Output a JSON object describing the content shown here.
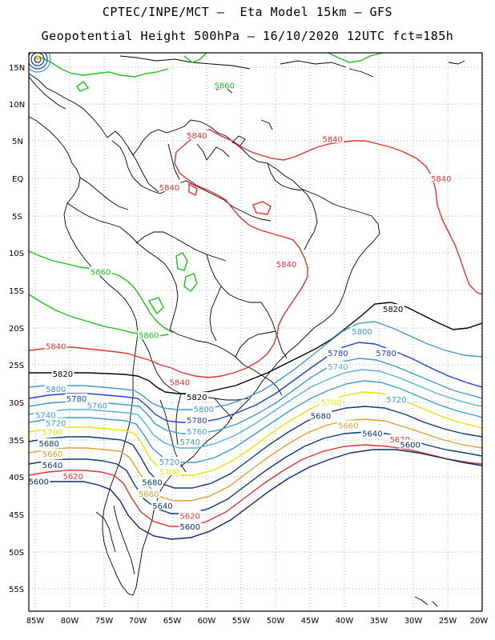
{
  "header": {
    "line1": "CPTEC/INPE/MCT –  Eta Model 15km – GFS",
    "line2": "Geopotential Height 500hPa – 16/10/2020 12UTC fct=185h"
  },
  "axes": {
    "lat_labels": [
      "15N",
      "10N",
      "5N",
      "EQ",
      "5S",
      "10S",
      "15S",
      "20S",
      "25S",
      "30S",
      "35S",
      "40S",
      "45S",
      "50S",
      "55S"
    ],
    "lon_labels": [
      "85W",
      "80W",
      "75W",
      "70W",
      "65W",
      "60W",
      "55W",
      "50W",
      "45W",
      "40W",
      "35W",
      "30W",
      "25W",
      "20W"
    ]
  },
  "contour_labels": [
    {
      "text": "5860",
      "color": "#18c418",
      "lon": -57.5,
      "lat": 12.5
    },
    {
      "text": "5860",
      "color": "#18c418",
      "lon": -75.5,
      "lat": -12.5
    },
    {
      "text": "5860",
      "color": "#18c418",
      "lon": -68.5,
      "lat": -21.0
    },
    {
      "text": "5840",
      "color": "#e83030",
      "lon": -61.5,
      "lat": 5.8
    },
    {
      "text": "5840",
      "color": "#e83030",
      "lon": -41.8,
      "lat": 5.3
    },
    {
      "text": "5840",
      "color": "#e83030",
      "lon": -65.5,
      "lat": -1.2
    },
    {
      "text": "5840",
      "color": "#e83030",
      "lon": -26.0,
      "lat": 0.0
    },
    {
      "text": "5840",
      "color": "#e83030",
      "lon": -48.5,
      "lat": -11.5
    },
    {
      "text": "5840",
      "color": "#e83030",
      "lon": -82.0,
      "lat": -22.5
    },
    {
      "text": "5840",
      "color": "#e83030",
      "lon": -64.0,
      "lat": -27.3
    },
    {
      "text": "5820",
      "color": "#000000",
      "lon": -33.0,
      "lat": -17.5
    },
    {
      "text": "5820",
      "color": "#000000",
      "lon": -81.0,
      "lat": -26.2
    },
    {
      "text": "5820",
      "color": "#000000",
      "lon": -61.5,
      "lat": -29.3
    },
    {
      "text": "5800",
      "color": "#3a9ecc",
      "lon": -37.5,
      "lat": -20.5
    },
    {
      "text": "5800",
      "color": "#3a9ecc",
      "lon": -82.0,
      "lat": -28.2
    },
    {
      "text": "5800",
      "color": "#3a9ecc",
      "lon": -60.5,
      "lat": -30.9
    },
    {
      "text": "5780",
      "color": "#1f3ee0",
      "lon": -41.0,
      "lat": -23.4
    },
    {
      "text": "5780",
      "color": "#1f3ee0",
      "lon": -34.0,
      "lat": -23.4
    },
    {
      "text": "5780",
      "color": "#1f3ee0",
      "lon": -79.0,
      "lat": -29.5
    },
    {
      "text": "5780",
      "color": "#1f3ee0",
      "lon": -61.5,
      "lat": -32.4
    },
    {
      "text": "5760",
      "color": "#3a9ecc",
      "lon": -76.0,
      "lat": -30.4
    },
    {
      "text": "5760",
      "color": "#3a9ecc",
      "lon": -61.5,
      "lat": -33.9
    },
    {
      "text": "5740",
      "color": "#5ab0d8",
      "lon": -41.0,
      "lat": -25.2
    },
    {
      "text": "5740",
      "color": "#3a9ecc",
      "lon": -83.5,
      "lat": -31.7
    },
    {
      "text": "5740",
      "color": "#3a9ecc",
      "lon": -62.5,
      "lat": -35.3
    },
    {
      "text": "5720",
      "color": "#3a9ecc",
      "lon": -32.5,
      "lat": -29.6
    },
    {
      "text": "5720",
      "color": "#3a9ecc",
      "lon": -82.0,
      "lat": -32.8
    },
    {
      "text": "5720",
      "color": "#3a9ecc",
      "lon": -65.5,
      "lat": -38.0
    },
    {
      "text": "5700",
      "color": "#e6e600",
      "lon": -42.0,
      "lat": -30.0
    },
    {
      "text": "5700",
      "color": "#e6e600",
      "lon": -82.5,
      "lat": -34.0
    },
    {
      "text": "5700",
      "color": "#e6e600",
      "lon": -65.5,
      "lat": -39.3
    },
    {
      "text": "5680",
      "color": "#0b3a7a",
      "lon": -43.5,
      "lat": -31.8
    },
    {
      "text": "5680",
      "color": "#0b3a7a",
      "lon": -83.0,
      "lat": -35.5
    },
    {
      "text": "5680",
      "color": "#0b3a7a",
      "lon": -68.0,
      "lat": -40.7
    },
    {
      "text": "5660",
      "color": "#e0a030",
      "lon": -39.5,
      "lat": -33.1
    },
    {
      "text": "5660",
      "color": "#e0a030",
      "lon": -82.5,
      "lat": -36.9
    },
    {
      "text": "5660",
      "color": "#e0a030",
      "lon": -68.5,
      "lat": -42.3
    },
    {
      "text": "5640",
      "color": "#0b3a7a",
      "lon": -36.0,
      "lat": -34.2
    },
    {
      "text": "5640",
      "color": "#0b3a7a",
      "lon": -82.5,
      "lat": -38.4
    },
    {
      "text": "5640",
      "color": "#0b3a7a",
      "lon": -66.5,
      "lat": -43.9
    },
    {
      "text": "5620",
      "color": "#e83030",
      "lon": -32.0,
      "lat": -35.0
    },
    {
      "text": "5620",
      "color": "#e83030",
      "lon": -79.5,
      "lat": -39.9
    },
    {
      "text": "5620",
      "color": "#e83030",
      "lon": -62.5,
      "lat": -45.2
    },
    {
      "text": "5600",
      "color": "#0b2a6a",
      "lon": -30.5,
      "lat": -35.7
    },
    {
      "text": "5600",
      "color": "#0b2a6a",
      "lon": -84.5,
      "lat": -40.6
    },
    {
      "text": "5600",
      "color": "#0b2a6a",
      "lon": -62.5,
      "lat": -46.7
    }
  ]
}
